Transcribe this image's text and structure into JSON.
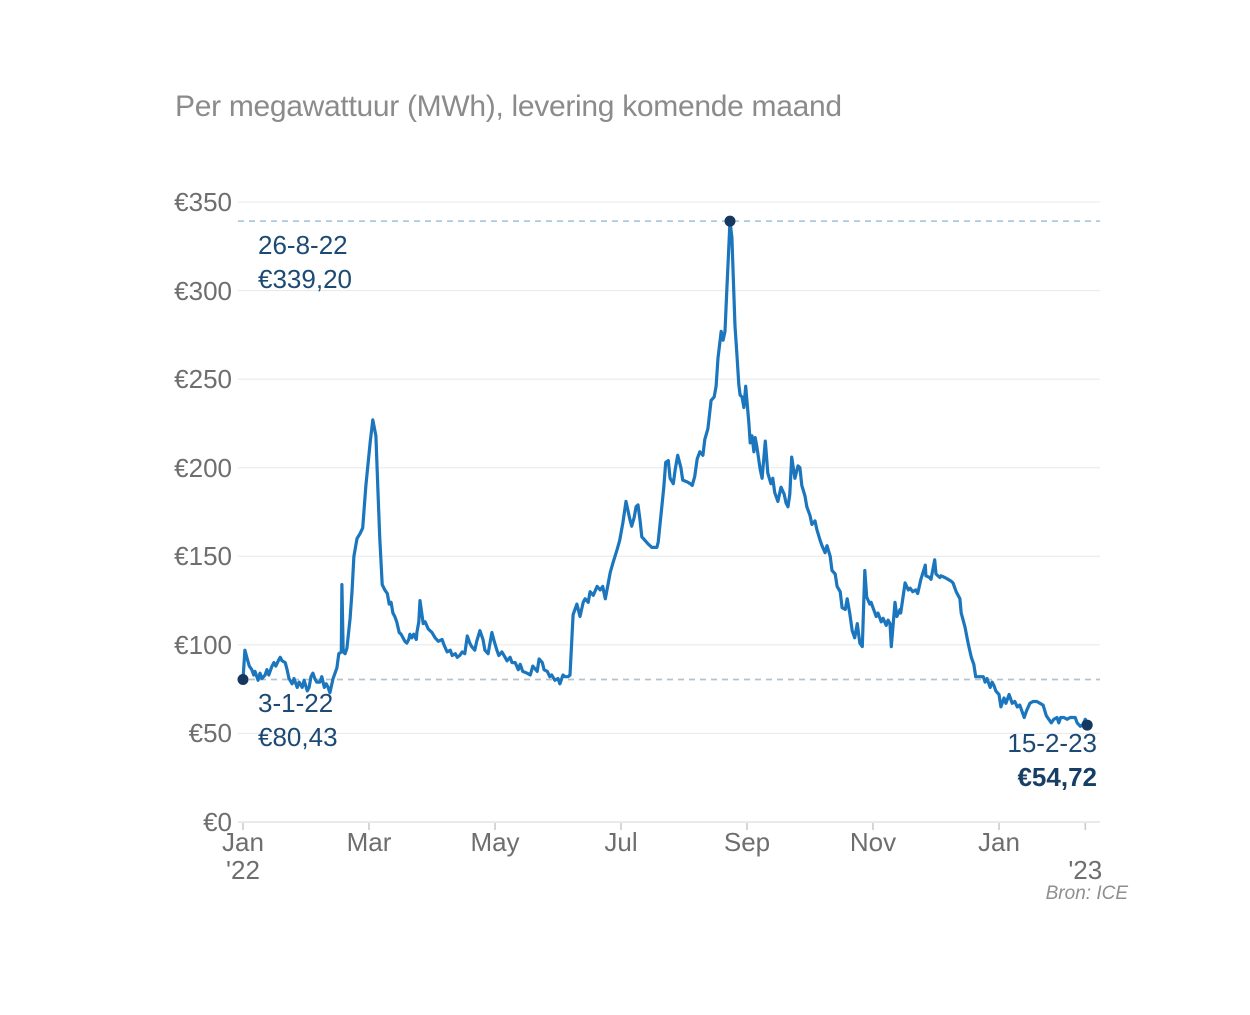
{
  "title": "Per megawattuur (MWh), levering komende maand",
  "source": "Bron: ICE",
  "annotations": {
    "peak": {
      "date": "26-8-22",
      "value": "€339,20"
    },
    "start": {
      "date": "3-1-22",
      "value": "€80,43"
    },
    "end": {
      "date": "15-2-23",
      "value": "€54,72"
    }
  },
  "chart_data": {
    "type": "line",
    "title": "Per megawattuur (MWh), levering komende maand",
    "unit": "EUR per MWh",
    "x_unit": "months since 2022-01-01",
    "xlabel": "",
    "ylabel": "",
    "ylim": [
      0,
      350
    ],
    "grid": "horizontal",
    "legend": "none",
    "line_color": "#1b76bd",
    "marker_color": "#16375f",
    "grid_color": "#e8e8e8",
    "axis_line_color": "#d5d5d5",
    "y_ticks": [
      {
        "label": "€0",
        "value": 0
      },
      {
        "label": "€50",
        "value": 50
      },
      {
        "label": "€100",
        "value": 100
      },
      {
        "label": "€150",
        "value": 150
      },
      {
        "label": "€200",
        "value": 200
      },
      {
        "label": "€250",
        "value": 250
      },
      {
        "label": "€300",
        "value": 300
      },
      {
        "label": "€350",
        "value": 350
      }
    ],
    "x_ticks": [
      {
        "label": "Jan",
        "year": "'22",
        "m": 0
      },
      {
        "label": "Mar",
        "year": "",
        "m": 2
      },
      {
        "label": "May",
        "year": "",
        "m": 4
      },
      {
        "label": "Jul",
        "year": "",
        "m": 6
      },
      {
        "label": "Sep",
        "year": "",
        "m": 8
      },
      {
        "label": "Nov",
        "year": "",
        "m": 10
      },
      {
        "label": "Jan",
        "year": "",
        "m": 12
      },
      {
        "label": "",
        "year": "'23",
        "m": 13.37
      }
    ],
    "reference_lines": [
      {
        "value": 339.2,
        "color": "#a9cbe2"
      },
      {
        "value": 80.43,
        "color": "#b5c2cc"
      }
    ],
    "markers": [
      {
        "m": 0.0,
        "value": 80.43,
        "date": "3-1-22"
      },
      {
        "m": 7.73,
        "value": 339.2,
        "date": "26-8-22"
      },
      {
        "m": 13.4,
        "value": 54.72,
        "date": "15-2-23"
      }
    ],
    "points": [
      [
        0,
        80.43
      ],
      [
        0.03,
        97
      ],
      [
        0.06,
        93
      ],
      [
        0.1,
        88
      ],
      [
        0.14,
        86
      ],
      [
        0.17,
        83
      ],
      [
        0.19,
        85
      ],
      [
        0.24,
        80
      ],
      [
        0.27,
        84
      ],
      [
        0.3,
        81
      ],
      [
        0.35,
        83
      ],
      [
        0.38,
        86
      ],
      [
        0.41,
        83
      ],
      [
        0.46,
        88
      ],
      [
        0.49,
        90
      ],
      [
        0.52,
        88
      ],
      [
        0.56,
        91
      ],
      [
        0.59,
        93
      ],
      [
        0.62,
        91
      ],
      [
        0.67,
        90
      ],
      [
        0.7,
        86
      ],
      [
        0.73,
        81
      ],
      [
        0.78,
        78
      ],
      [
        0.81,
        81
      ],
      [
        0.86,
        76
      ],
      [
        0.89,
        79
      ],
      [
        0.94,
        76
      ],
      [
        0.97,
        80
      ],
      [
        1.02,
        74
      ],
      [
        1.05,
        76
      ],
      [
        1.08,
        82
      ],
      [
        1.11,
        84
      ],
      [
        1.14,
        81
      ],
      [
        1.17,
        79
      ],
      [
        1.22,
        79
      ],
      [
        1.25,
        82
      ],
      [
        1.29,
        76
      ],
      [
        1.32,
        78
      ],
      [
        1.35,
        76
      ],
      [
        1.38,
        73
      ],
      [
        1.43,
        81
      ],
      [
        1.49,
        87
      ],
      [
        1.52,
        95
      ],
      [
        1.56,
        96
      ],
      [
        1.57,
        134
      ],
      [
        1.59,
        96
      ],
      [
        1.62,
        95
      ],
      [
        1.65,
        98
      ],
      [
        1.7,
        115
      ],
      [
        1.73,
        130
      ],
      [
        1.76,
        150
      ],
      [
        1.81,
        160
      ],
      [
        1.86,
        163
      ],
      [
        1.9,
        166
      ],
      [
        1.95,
        190
      ],
      [
        2.02,
        215
      ],
      [
        2.06,
        227
      ],
      [
        2.11,
        218
      ],
      [
        2.14,
        189
      ],
      [
        2.17,
        161
      ],
      [
        2.21,
        134
      ],
      [
        2.25,
        131
      ],
      [
        2.29,
        129
      ],
      [
        2.32,
        123
      ],
      [
        2.35,
        124
      ],
      [
        2.38,
        118
      ],
      [
        2.41,
        116
      ],
      [
        2.44,
        113
      ],
      [
        2.48,
        107
      ],
      [
        2.51,
        106
      ],
      [
        2.54,
        104
      ],
      [
        2.57,
        102
      ],
      [
        2.6,
        101
      ],
      [
        2.63,
        103
      ],
      [
        2.65,
        106
      ],
      [
        2.68,
        104
      ],
      [
        2.71,
        106
      ],
      [
        2.75,
        103
      ],
      [
        2.76,
        107
      ],
      [
        2.79,
        113
      ],
      [
        2.81,
        125
      ],
      [
        2.86,
        112
      ],
      [
        2.89,
        113
      ],
      [
        2.94,
        109
      ],
      [
        3,
        107
      ],
      [
        3.05,
        104
      ],
      [
        3.1,
        102
      ],
      [
        3.16,
        103
      ],
      [
        3.19,
        100
      ],
      [
        3.24,
        96
      ],
      [
        3.29,
        97
      ],
      [
        3.32,
        94
      ],
      [
        3.37,
        95
      ],
      [
        3.4,
        93
      ],
      [
        3.44,
        94
      ],
      [
        3.48,
        96
      ],
      [
        3.52,
        95
      ],
      [
        3.56,
        105
      ],
      [
        3.6,
        101
      ],
      [
        3.63,
        99
      ],
      [
        3.68,
        97
      ],
      [
        3.71,
        102
      ],
      [
        3.76,
        108
      ],
      [
        3.81,
        103
      ],
      [
        3.84,
        97
      ],
      [
        3.89,
        95
      ],
      [
        3.95,
        107
      ],
      [
        3.98,
        103
      ],
      [
        4.03,
        97
      ],
      [
        4.06,
        94
      ],
      [
        4.11,
        96
      ],
      [
        4.16,
        93
      ],
      [
        4.19,
        91
      ],
      [
        4.24,
        93
      ],
      [
        4.27,
        90
      ],
      [
        4.32,
        90
      ],
      [
        4.37,
        86
      ],
      [
        4.4,
        89
      ],
      [
        4.44,
        85
      ],
      [
        4.51,
        84
      ],
      [
        4.56,
        83
      ],
      [
        4.6,
        88
      ],
      [
        4.67,
        85
      ],
      [
        4.7,
        92
      ],
      [
        4.75,
        90
      ],
      [
        4.78,
        86
      ],
      [
        4.83,
        85
      ],
      [
        4.87,
        82
      ],
      [
        4.9,
        83
      ],
      [
        4.95,
        80
      ],
      [
        5,
        81
      ],
      [
        5.03,
        78
      ],
      [
        5.08,
        83
      ],
      [
        5.11,
        82
      ],
      [
        5.16,
        82
      ],
      [
        5.19,
        83
      ],
      [
        5.24,
        117
      ],
      [
        5.3,
        123
      ],
      [
        5.35,
        116
      ],
      [
        5.4,
        124
      ],
      [
        5.43,
        126
      ],
      [
        5.48,
        124
      ],
      [
        5.51,
        130
      ],
      [
        5.56,
        128
      ],
      [
        5.62,
        133
      ],
      [
        5.67,
        131
      ],
      [
        5.71,
        133
      ],
      [
        5.75,
        126
      ],
      [
        5.83,
        141
      ],
      [
        5.87,
        146
      ],
      [
        5.94,
        154
      ],
      [
        5.98,
        159
      ],
      [
        6.03,
        169
      ],
      [
        6.08,
        181
      ],
      [
        6.14,
        171
      ],
      [
        6.17,
        167
      ],
      [
        6.21,
        172
      ],
      [
        6.24,
        178
      ],
      [
        6.27,
        179
      ],
      [
        6.3,
        171
      ],
      [
        6.33,
        161
      ],
      [
        6.38,
        159
      ],
      [
        6.43,
        157
      ],
      [
        6.49,
        155
      ],
      [
        6.54,
        155
      ],
      [
        6.57,
        155
      ],
      [
        6.59,
        158
      ],
      [
        6.65,
        179
      ],
      [
        6.68,
        189
      ],
      [
        6.71,
        203
      ],
      [
        6.75,
        204
      ],
      [
        6.78,
        194
      ],
      [
        6.83,
        191
      ],
      [
        6.86,
        199
      ],
      [
        6.9,
        207
      ],
      [
        6.95,
        200
      ],
      [
        6.98,
        193
      ],
      [
        7.05,
        192
      ],
      [
        7.1,
        191
      ],
      [
        7.13,
        190
      ],
      [
        7.17,
        195
      ],
      [
        7.21,
        205
      ],
      [
        7.25,
        209
      ],
      [
        7.3,
        207
      ],
      [
        7.33,
        216
      ],
      [
        7.38,
        222
      ],
      [
        7.43,
        238
      ],
      [
        7.48,
        240
      ],
      [
        7.51,
        246
      ],
      [
        7.54,
        262
      ],
      [
        7.59,
        277
      ],
      [
        7.62,
        272
      ],
      [
        7.65,
        277
      ],
      [
        7.68,
        300
      ],
      [
        7.73,
        339.2
      ],
      [
        7.76,
        330
      ],
      [
        7.79,
        299
      ],
      [
        7.81,
        280
      ],
      [
        7.84,
        264
      ],
      [
        7.87,
        247
      ],
      [
        7.89,
        241
      ],
      [
        7.92,
        240
      ],
      [
        7.95,
        234
      ],
      [
        7.98,
        246
      ],
      [
        8.03,
        225
      ],
      [
        8.05,
        214
      ],
      [
        8.08,
        218
      ],
      [
        8.11,
        209
      ],
      [
        8.13,
        217
      ],
      [
        8.16,
        211
      ],
      [
        8.21,
        199
      ],
      [
        8.24,
        194
      ],
      [
        8.29,
        215
      ],
      [
        8.33,
        197
      ],
      [
        8.38,
        191
      ],
      [
        8.41,
        194
      ],
      [
        8.44,
        186
      ],
      [
        8.49,
        181
      ],
      [
        8.54,
        189
      ],
      [
        8.59,
        185
      ],
      [
        8.62,
        180
      ],
      [
        8.65,
        178
      ],
      [
        8.68,
        185
      ],
      [
        8.71,
        206
      ],
      [
        8.76,
        194
      ],
      [
        8.81,
        201
      ],
      [
        8.84,
        200
      ],
      [
        8.87,
        190
      ],
      [
        8.92,
        184
      ],
      [
        8.95,
        178
      ],
      [
        9,
        173
      ],
      [
        9.03,
        168
      ],
      [
        9.08,
        170
      ],
      [
        9.11,
        165
      ],
      [
        9.16,
        159
      ],
      [
        9.19,
        156
      ],
      [
        9.24,
        152
      ],
      [
        9.27,
        156
      ],
      [
        9.32,
        150
      ],
      [
        9.35,
        142
      ],
      [
        9.4,
        140
      ],
      [
        9.43,
        133
      ],
      [
        9.48,
        130
      ],
      [
        9.51,
        121
      ],
      [
        9.56,
        120
      ],
      [
        9.59,
        126
      ],
      [
        9.63,
        118
      ],
      [
        9.67,
        108
      ],
      [
        9.71,
        104
      ],
      [
        9.75,
        112
      ],
      [
        9.79,
        101
      ],
      [
        9.83,
        99
      ],
      [
        9.87,
        142
      ],
      [
        9.9,
        127
      ],
      [
        9.95,
        123
      ],
      [
        9.97,
        124
      ],
      [
        10,
        121
      ],
      [
        10.05,
        116
      ],
      [
        10.08,
        118
      ],
      [
        10.13,
        113
      ],
      [
        10.16,
        115
      ],
      [
        10.21,
        111
      ],
      [
        10.24,
        114
      ],
      [
        10.27,
        112
      ],
      [
        10.29,
        99
      ],
      [
        10.35,
        124
      ],
      [
        10.38,
        116
      ],
      [
        10.43,
        120
      ],
      [
        10.44,
        118
      ],
      [
        10.51,
        135
      ],
      [
        10.56,
        131
      ],
      [
        10.59,
        132
      ],
      [
        10.63,
        130
      ],
      [
        10.68,
        131
      ],
      [
        10.71,
        129
      ],
      [
        10.76,
        137
      ],
      [
        10.83,
        145
      ],
      [
        10.84,
        139
      ],
      [
        10.9,
        138
      ],
      [
        10.92,
        137
      ],
      [
        10.98,
        148
      ],
      [
        11,
        140
      ],
      [
        11.06,
        138
      ],
      [
        11.08,
        139
      ],
      [
        11.14,
        138
      ],
      [
        11.19,
        137
      ],
      [
        11.24,
        136
      ],
      [
        11.27,
        135
      ],
      [
        11.32,
        130
      ],
      [
        11.38,
        126
      ],
      [
        11.4,
        118
      ],
      [
        11.46,
        110
      ],
      [
        11.51,
        101
      ],
      [
        11.56,
        93
      ],
      [
        11.6,
        89
      ],
      [
        11.63,
        82
      ],
      [
        11.68,
        82
      ],
      [
        11.75,
        82
      ],
      [
        11.78,
        79
      ],
      [
        11.81,
        81
      ],
      [
        11.86,
        76
      ],
      [
        11.89,
        79
      ],
      [
        11.92,
        77
      ],
      [
        11.95,
        74
      ],
      [
        12,
        72
      ],
      [
        12.03,
        65
      ],
      [
        12.08,
        70
      ],
      [
        12.11,
        67
      ],
      [
        12.16,
        72
      ],
      [
        12.21,
        67
      ],
      [
        12.25,
        68
      ],
      [
        12.29,
        65
      ],
      [
        12.33,
        66
      ],
      [
        12.4,
        59
      ],
      [
        12.44,
        63
      ],
      [
        12.49,
        67
      ],
      [
        12.54,
        68
      ],
      [
        12.6,
        68
      ],
      [
        12.65,
        67
      ],
      [
        12.7,
        66
      ],
      [
        12.75,
        60
      ],
      [
        12.79,
        58
      ],
      [
        12.83,
        56
      ],
      [
        12.87,
        58
      ],
      [
        12.92,
        59
      ],
      [
        12.95,
        56
      ],
      [
        12.98,
        59
      ],
      [
        13.03,
        59
      ],
      [
        13.08,
        58
      ],
      [
        13.13,
        59
      ],
      [
        13.21,
        59
      ],
      [
        13.24,
        56
      ],
      [
        13.29,
        54
      ],
      [
        13.33,
        55
      ],
      [
        13.37,
        58
      ],
      [
        13.4,
        54.72
      ]
    ]
  }
}
